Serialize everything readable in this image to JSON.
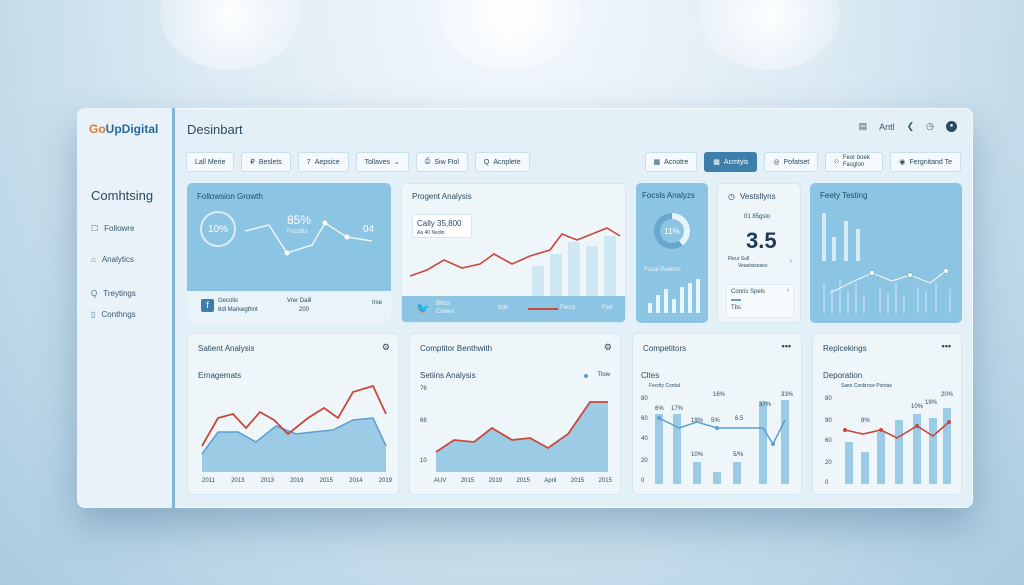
{
  "sidebar": {
    "logo_prefix": "Go",
    "logo_rest": "UpDigital",
    "heading": "Comhtsing",
    "items": [
      {
        "icon": "☐",
        "label": "Followre"
      },
      {
        "icon": "⌂",
        "label": "Analytics"
      },
      {
        "icon": "Q",
        "label": "Treytings"
      },
      {
        "icon": "▯",
        "label": "Conthngs"
      }
    ]
  },
  "header": {
    "title": "Desinbart",
    "right_label": "Antl",
    "icons": [
      "calendar-icon",
      "back-icon",
      "bell-icon",
      "account-icon"
    ]
  },
  "toolbar": {
    "left": [
      {
        "label": "Lall Merie"
      },
      {
        "icon": "₽",
        "label": "Beslets"
      },
      {
        "icon": "7",
        "label": "Aepsice"
      },
      {
        "label": "Tollaves",
        "caret": "⌄"
      },
      {
        "icon": "⎙",
        "label": "Siw Fiol"
      },
      {
        "icon": "Q",
        "label": "Acnplete"
      }
    ],
    "right": [
      {
        "icon": "▦",
        "label": "Acnotre",
        "active": false
      },
      {
        "icon": "▦",
        "label": "Acmtyis",
        "active": true
      },
      {
        "icon": "◎",
        "label": "Pofatset",
        "active": false
      },
      {
        "icon": "◇",
        "label": "Feor boek Fasglon",
        "active": false
      },
      {
        "icon": "◉",
        "label": "Fergnitand Te",
        "active": false
      }
    ]
  },
  "cards": {
    "followers_growth": {
      "title": "Followsion Growth",
      "pct_left": "10%",
      "pct_right": "85%",
      "pct_right_sub": "Focsitts",
      "small_value": "04",
      "fb_label1": "Gecolis",
      "fb_label2": "8dl Markegthnt",
      "mid_label1": "Vrer Daill",
      "mid_label2": "200",
      "right_label": "Irse"
    },
    "program_analysis": {
      "title": "Progent Analysis",
      "callout": "Cally 35,800",
      "callout_sub": "Aa 40 Nedin",
      "tw_label1": "Brbol",
      "tw_label2": "Cowes",
      "legend1": "Irde",
      "legend2": "Fecre",
      "legend3": "Fed"
    },
    "focus_analysis": {
      "title": "Focsls Analyzs",
      "donut_pct": "11%",
      "sub": "Focal Poeires"
    },
    "stats": {
      "title": "Vestsllyns",
      "small": "01 85gslo",
      "big": "3.5",
      "foot1": "Fleur Sull",
      "foot2": "Veaeisisnaes",
      "list": [
        "Conris Spels",
        "Tbs"
      ]
    },
    "feety_testing": {
      "title": "Feety Testing"
    },
    "salient_analysis": {
      "title": "Satient Analysis",
      "sub": "Ernagemats",
      "x_labels": [
        "2011",
        "2013",
        "2013",
        "2019",
        "2015",
        "2014",
        "2019"
      ]
    },
    "competitor": {
      "title": "Comptitor Benthwith",
      "sub": "Setiins Analysis",
      "legend": "Tlow",
      "y_labels": [
        "76",
        "68",
        "10"
      ],
      "x_labels": [
        "AUV",
        "2015",
        "2019",
        "2015",
        "April",
        "2015",
        "2015"
      ]
    },
    "competitors": {
      "title": "Competitors",
      "sub": "Cltes",
      "legend": "Fecrity Contal",
      "y_labels": [
        "80",
        "60",
        "40",
        "20",
        "0"
      ],
      "data_labels": [
        "6%",
        "17%",
        "19%",
        "5%",
        "16%",
        "6.5",
        "37%",
        "33%",
        "10%",
        "5/%"
      ]
    },
    "replacements": {
      "title": "Replcekings",
      "sub": "Deporation",
      "legend": "Saes Conlirnce Pontas",
      "y_labels": [
        "80",
        "90",
        "60",
        "20",
        "0"
      ],
      "data_labels": [
        "19%",
        "8%",
        "10%",
        "20%"
      ]
    }
  },
  "colors": {
    "accent": "#3d7fa8",
    "line_red": "#d4574a",
    "line_blue": "#5b9ed0",
    "card_blue": "#8cc4e3"
  }
}
